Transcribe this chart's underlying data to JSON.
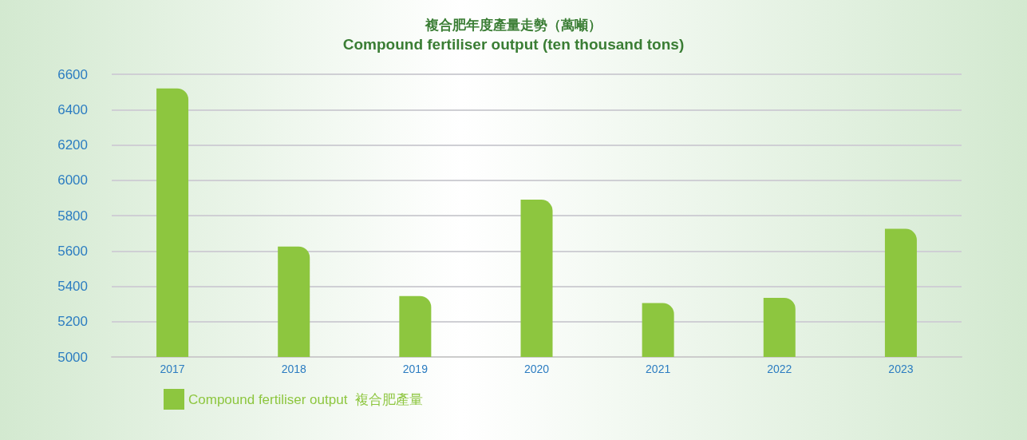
{
  "chart_data": {
    "type": "bar",
    "title": "複合肥年度產量走勢（萬噸）",
    "subtitle": "Compound fertiliser output (ten thousand tons)",
    "categories": [
      "2017",
      "2018",
      "2019",
      "2020",
      "2021",
      "2022",
      "2023"
    ],
    "series": [
      {
        "name": "Compound fertiliser output  複合肥產量",
        "color": "#8dc63f",
        "values": [
          6520,
          5625,
          5345,
          5890,
          5305,
          5335,
          5725
        ]
      }
    ],
    "ylim": [
      5000,
      6600
    ],
    "yticks": [
      5000,
      5200,
      5400,
      5600,
      5800,
      6000,
      6200,
      6400,
      6600
    ],
    "grid": "y",
    "legend": "bottom"
  }
}
